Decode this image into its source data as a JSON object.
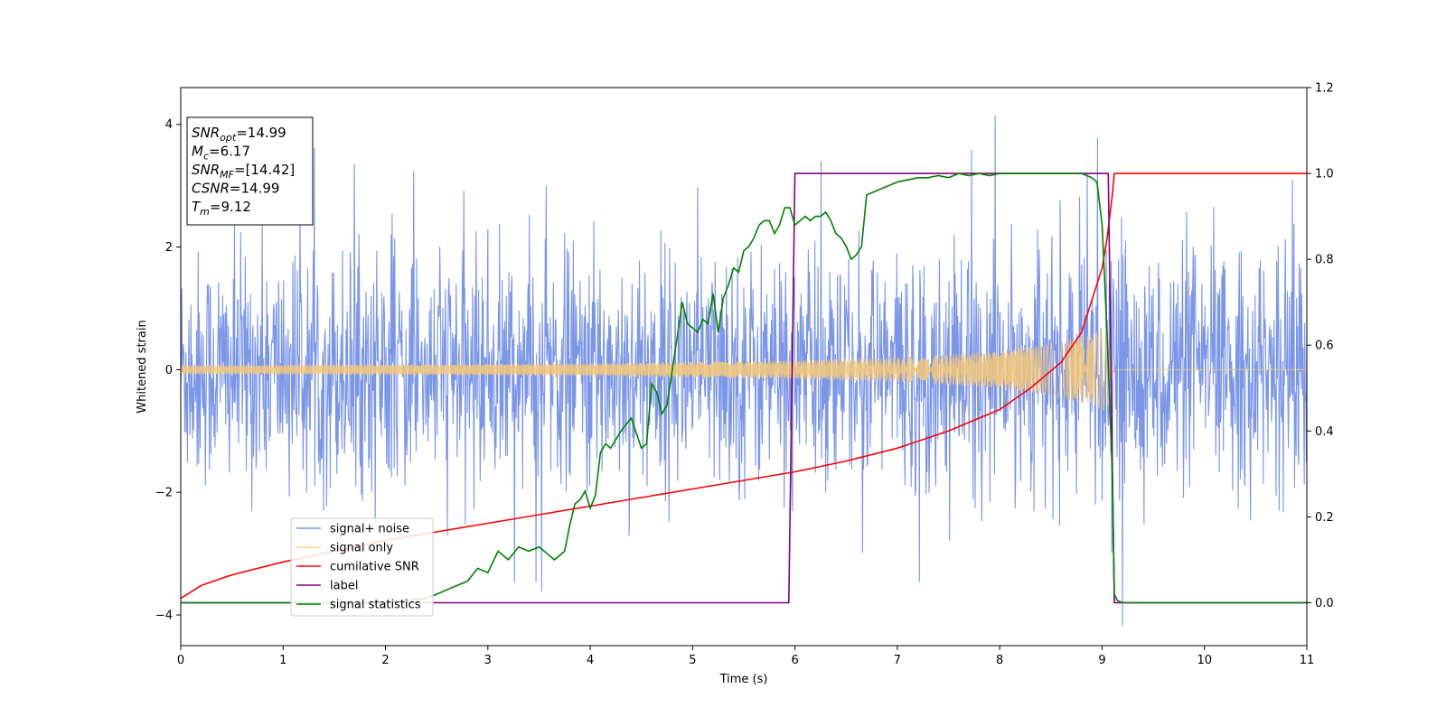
{
  "chart_data": {
    "type": "line",
    "xlabel": "Time (s)",
    "ylabel": "Whitened strain",
    "xlim": [
      0,
      11
    ],
    "ylim": [
      -4.5,
      4.6
    ],
    "y2lim": [
      -0.1,
      1.2
    ],
    "x_ticks": [
      0,
      1,
      2,
      3,
      4,
      5,
      6,
      7,
      8,
      9,
      10,
      11
    ],
    "x_tick_labels": [
      "0",
      "1",
      "2",
      "3",
      "4",
      "5",
      "6",
      "7",
      "8",
      "9",
      "10",
      "11"
    ],
    "y_ticks": [
      -4,
      -2,
      0,
      2,
      4
    ],
    "y_tick_labels": [
      "−4",
      "−2",
      "0",
      "2",
      "4"
    ],
    "y2_ticks": [
      0.0,
      0.2,
      0.4,
      0.6,
      0.8,
      1.0,
      1.2
    ],
    "y2_tick_labels": [
      "0.0",
      "0.2",
      "0.4",
      "0.6",
      "0.8",
      "1.0",
      "1.2"
    ],
    "grid": false,
    "legend_position": "lower-left",
    "annotation": {
      "lines": [
        {
          "sym": "SNR",
          "sub": "opt",
          "value": "=14.99"
        },
        {
          "sym": "M",
          "sub": "c",
          "value": "=6.17"
        },
        {
          "sym": "SNR",
          "sub": "MF",
          "value": "=[14.42]"
        },
        {
          "sym": "CSNR",
          "sub": "",
          "value": "=14.99"
        },
        {
          "sym": "T",
          "sub": "m",
          "value": "=9.12"
        }
      ]
    },
    "series": [
      {
        "name": "signal+ noise",
        "axis": "left",
        "color": "#7b96e8",
        "kind": "noise",
        "x_range": [
          0,
          11
        ],
        "sigma": 0.95,
        "peak_amplitude": 4.2
      },
      {
        "name": "signal only",
        "axis": "left",
        "color": "#f5c87a",
        "kind": "chirp",
        "x_range": [
          0,
          9.12
        ],
        "envelope": {
          "x": [
            0,
            2,
            4,
            6,
            7,
            8,
            8.5,
            8.9,
            9.05,
            9.12
          ],
          "y": [
            0.07,
            0.08,
            0.1,
            0.15,
            0.2,
            0.3,
            0.42,
            0.58,
            0.7,
            0.0
          ]
        }
      },
      {
        "name": "cumilative SNR",
        "axis": "right",
        "color": "#ff0000",
        "x": [
          0,
          0.2,
          0.5,
          1,
          1.5,
          2,
          2.5,
          3,
          3.5,
          4,
          4.5,
          5,
          5.5,
          6,
          6.5,
          7,
          7.5,
          8,
          8.3,
          8.6,
          8.8,
          9,
          9.05,
          9.1,
          9.12,
          11
        ],
        "y": [
          0.01,
          0.04,
          0.065,
          0.095,
          0.12,
          0.145,
          0.165,
          0.185,
          0.205,
          0.225,
          0.245,
          0.265,
          0.285,
          0.305,
          0.33,
          0.36,
          0.4,
          0.45,
          0.5,
          0.56,
          0.63,
          0.78,
          0.85,
          0.95,
          1.0,
          1.0
        ]
      },
      {
        "name": "label",
        "axis": "right",
        "color": "#800080",
        "x": [
          0,
          5.94,
          6.0,
          9.06,
          9.12,
          11
        ],
        "y": [
          0,
          0,
          1,
          1,
          0,
          0
        ]
      },
      {
        "name": "signal statistics",
        "axis": "right",
        "color": "#008000",
        "x": [
          0,
          0.5,
          1,
          1.5,
          2,
          2.2,
          2.4,
          2.5,
          2.6,
          2.7,
          2.8,
          2.9,
          3.0,
          3.1,
          3.2,
          3.3,
          3.4,
          3.5,
          3.6,
          3.65,
          3.7,
          3.75,
          3.8,
          3.85,
          3.9,
          3.95,
          4.0,
          4.05,
          4.1,
          4.15,
          4.2,
          4.3,
          4.4,
          4.5,
          4.55,
          4.6,
          4.65,
          4.7,
          4.75,
          4.8,
          4.85,
          4.9,
          4.95,
          5.0,
          5.05,
          5.1,
          5.15,
          5.2,
          5.25,
          5.3,
          5.35,
          5.4,
          5.45,
          5.5,
          5.55,
          5.6,
          5.65,
          5.7,
          5.75,
          5.8,
          5.85,
          5.9,
          5.95,
          6.0,
          6.05,
          6.1,
          6.15,
          6.2,
          6.25,
          6.3,
          6.35,
          6.4,
          6.45,
          6.5,
          6.55,
          6.6,
          6.65,
          6.7,
          6.8,
          6.9,
          7.0,
          7.1,
          7.2,
          7.3,
          7.4,
          7.5,
          7.6,
          7.7,
          7.8,
          7.9,
          8.0,
          8.1,
          8.2,
          8.3,
          8.4,
          8.5,
          8.6,
          8.7,
          8.8,
          8.9,
          8.95,
          9.0,
          9.05,
          9.1,
          9.12,
          9.15,
          9.2,
          9.3,
          9.5,
          10,
          10.5,
          11
        ],
        "y": [
          0.0,
          0.0,
          0.0,
          0.0,
          0.0,
          0.005,
          0.01,
          0.02,
          0.03,
          0.04,
          0.05,
          0.08,
          0.07,
          0.12,
          0.1,
          0.13,
          0.12,
          0.13,
          0.11,
          0.1,
          0.11,
          0.12,
          0.18,
          0.23,
          0.24,
          0.26,
          0.22,
          0.25,
          0.35,
          0.37,
          0.36,
          0.4,
          0.43,
          0.36,
          0.37,
          0.51,
          0.49,
          0.44,
          0.46,
          0.54,
          0.62,
          0.7,
          0.65,
          0.64,
          0.63,
          0.66,
          0.65,
          0.72,
          0.63,
          0.71,
          0.74,
          0.78,
          0.77,
          0.82,
          0.83,
          0.85,
          0.88,
          0.89,
          0.89,
          0.86,
          0.88,
          0.92,
          0.92,
          0.88,
          0.89,
          0.9,
          0.89,
          0.9,
          0.9,
          0.91,
          0.89,
          0.86,
          0.85,
          0.83,
          0.8,
          0.81,
          0.83,
          0.95,
          0.96,
          0.97,
          0.98,
          0.985,
          0.99,
          0.99,
          0.995,
          0.99,
          1.0,
          0.995,
          1.0,
          0.995,
          1.0,
          1.0,
          1.0,
          1.0,
          1.0,
          1.0,
          1.0,
          1.0,
          1.0,
          0.99,
          0.98,
          0.88,
          0.62,
          0.3,
          0.02,
          0.005,
          0.0,
          0.0,
          0.0,
          0.0,
          0.0,
          0.0
        ]
      }
    ]
  }
}
